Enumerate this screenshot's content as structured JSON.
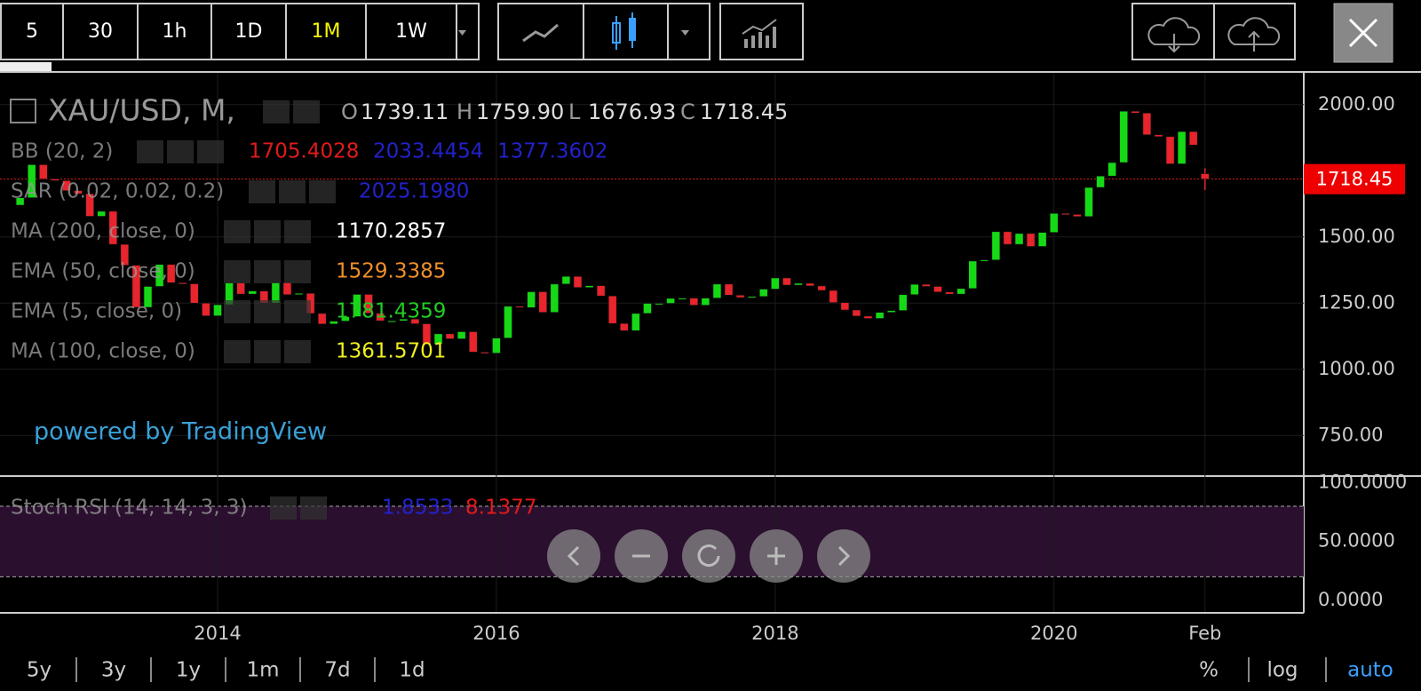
{
  "toolbar": {
    "intervals": [
      "5",
      "30",
      "1h",
      "1D",
      "1M",
      "1W"
    ],
    "active_interval": "1M"
  },
  "symbol": {
    "name": "XAU/USD, M,",
    "ohlc": [
      {
        "key": "O",
        "value": 1739.11,
        "label": "1739.11"
      },
      {
        "key": "H",
        "value": 1759.9,
        "label": "1759.90"
      },
      {
        "key": "L",
        "value": 1676.93,
        "label": "1676.93"
      },
      {
        "key": "C",
        "value": 1718.45,
        "label": "1718.45"
      }
    ]
  },
  "indicators": [
    {
      "name": "BB (20, 2)",
      "values": [
        "1705.4028",
        "2033.4454",
        "1377.3602"
      ],
      "colors": [
        "#e01b1b",
        "#2222cc",
        "#2222cc"
      ]
    },
    {
      "name": "SAR (0.02, 0.02, 0.2)",
      "values": [
        "2025.1980"
      ],
      "colors": [
        "#2222cc"
      ]
    },
    {
      "name": "MA (200, close, 0)",
      "values": [
        "1170.2857"
      ],
      "colors": [
        "#ffffff"
      ]
    },
    {
      "name": "EMA (50, close, 0)",
      "values": [
        "1529.3385"
      ],
      "colors": [
        "#f0902a"
      ]
    },
    {
      "name": "EMA (5, close, 0)",
      "values": [
        "1781.4359"
      ],
      "colors": [
        "#22cc22"
      ]
    },
    {
      "name": "MA (100, close, 0)",
      "values": [
        "1361.5701"
      ],
      "colors": [
        "#f0f020"
      ]
    }
  ],
  "stoch": {
    "name": "Stoch RSI (14, 14, 3, 3)",
    "values": [
      "1.8533",
      "8.1377"
    ],
    "colors": [
      "#2222cc",
      "#e01b1b"
    ]
  },
  "watermark": "powered by TradingView",
  "candles": {
    "start": "2012-08",
    "open": 1620,
    "closes": [
      1648,
      1773,
      1719,
      1713,
      1675,
      1663,
      1578,
      1597,
      1472,
      1393,
      1234,
      1313,
      1396,
      1327,
      1323,
      1250,
      1202,
      1244,
      1326,
      1284,
      1296,
      1250,
      1327,
      1282,
      1287,
      1211,
      1171,
      1182,
      1199,
      1283,
      1212,
      1183,
      1183,
      1190,
      1172,
      1095,
      1134,
      1115,
      1142,
      1065,
      1061,
      1118,
      1238,
      1233,
      1293,
      1215,
      1322,
      1351,
      1309,
      1316,
      1277,
      1173,
      1146,
      1211,
      1249,
      1249,
      1268,
      1269,
      1242,
      1269,
      1322,
      1280,
      1271,
      1275,
      1303,
      1345,
      1318,
      1325,
      1315,
      1298,
      1252,
      1224,
      1201,
      1192,
      1215,
      1222,
      1282,
      1321,
      1313,
      1292,
      1284,
      1305,
      1409,
      1413,
      1520,
      1472,
      1513,
      1464,
      1517,
      1589,
      1585,
      1577,
      1687,
      1730,
      1781,
      1975,
      1968,
      1886,
      1879,
      1776,
      1898,
      1847
    ],
    "colors": {
      "up": "#16d916",
      "down": "#e8242c"
    }
  },
  "price_axis": {
    "ylim": [
      600,
      2120
    ],
    "yticks": [
      {
        "value": 2000,
        "label": "2000.00"
      },
      {
        "value": 1500,
        "label": "1500.00"
      },
      {
        "value": 1250,
        "label": "1250.00"
      },
      {
        "value": 1000,
        "label": "1000.00"
      },
      {
        "value": 750,
        "label": "750.00"
      }
    ]
  },
  "stoch_axis": {
    "ylim": [
      -10,
      105
    ],
    "yticks": [
      {
        "value": 100,
        "label": "100.0000"
      },
      {
        "value": 50,
        "label": "50.0000"
      },
      {
        "value": 0,
        "label": "0.0000"
      }
    ],
    "bands": [
      80,
      20
    ]
  },
  "time_axis": [
    {
      "value": "2014-01",
      "label": "2014"
    },
    {
      "value": "2016-01",
      "label": "2016"
    },
    {
      "value": "2018-01",
      "label": "2018"
    },
    {
      "value": "2020-01",
      "label": "2020"
    },
    {
      "value": "2021-02",
      "label": "Feb"
    }
  ],
  "ranges": [
    "5y",
    "3y",
    "1y",
    "1m",
    "7d",
    "1d"
  ],
  "scale_modes": [
    "%",
    "log",
    "auto"
  ],
  "active_scale_mode": "auto"
}
